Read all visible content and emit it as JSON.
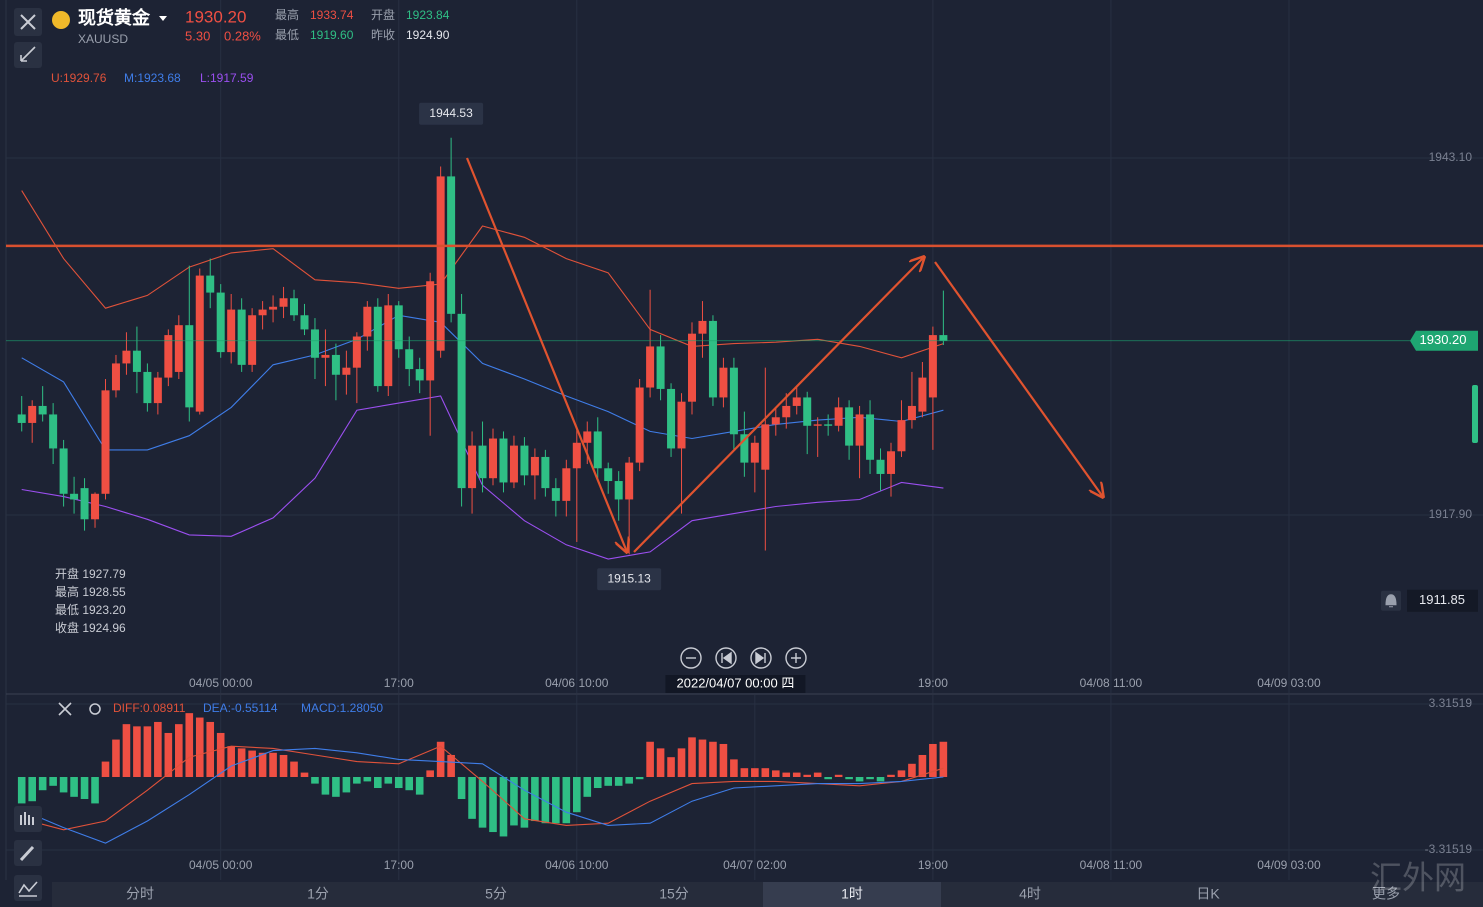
{
  "header": {
    "name": "现货黄金",
    "symbol": "XAUUSD",
    "price": "1930.20",
    "change": "5.30",
    "change_pct": "0.28%",
    "stats": [
      {
        "label": "最高",
        "value": "1933.74",
        "color": "#ef4f43"
      },
      {
        "label": "开盘",
        "value": "1923.84",
        "color": "#2fbf85"
      },
      {
        "label": "最低",
        "value": "1919.60",
        "color": "#2fbf85"
      },
      {
        "label": "昨收",
        "value": "1924.90",
        "color": "#e6e8ee"
      }
    ]
  },
  "ohlc_info": [
    "开盘 1927.79",
    "最高 1928.55",
    "最低 1923.20",
    "收盘 1924.96"
  ],
  "chart_data": [
    {
      "type": "candlestick",
      "colors": {
        "up": "#ef4f43",
        "down": "#2fbf85"
      },
      "open": [
        1925.0,
        1924.4,
        1925.6,
        1925.0,
        1922.6,
        1919.4,
        1919.8,
        1917.6,
        1919.4,
        1926.7,
        1928.6,
        1929.5,
        1928.0,
        1925.8,
        1927.6,
        1928.0,
        1931.3,
        1925.2,
        1934.8,
        1933.6,
        1929.4,
        1932.4,
        1928.5,
        1932.0,
        1932.4,
        1932.6,
        1933.2,
        1932.0,
        1931.0,
        1929.0,
        1929.2,
        1927.8,
        1928.3,
        1930.5,
        1932.6,
        1927.0,
        1932.7,
        1929.6,
        1928.2,
        1927.4,
        1929.5,
        1941.8,
        1932.1,
        1919.8,
        1922.8,
        1920.5,
        1923.3,
        1920.2,
        1922.8,
        1920.7,
        1922.0,
        1919.8,
        1918.9,
        1921.2,
        1923.0,
        1923.8,
        1921.2,
        1920.3,
        1919.0,
        1921.6,
        1926.9,
        1929.8,
        1926.8,
        1922.6,
        1925.9,
        1930.7,
        1931.6,
        1926.2,
        1928.3,
        1923.6,
        1921.6,
        1921.1,
        1924.3,
        1924.8,
        1925.6,
        1926.2,
        1924.2,
        1924.3,
        1924.2,
        1925.5,
        1922.8,
        1925.0,
        1921.8,
        1920.8,
        1922.4,
        1924.6,
        1925.2,
        1926.2,
        1930.6
      ],
      "high": [
        1926.3,
        1926.0,
        1927.0,
        1925.8,
        1923.2,
        1920.6,
        1920.5,
        1919.5,
        1927.5,
        1929.2,
        1930.8,
        1931.2,
        1928.6,
        1928.0,
        1931.0,
        1932.0,
        1935.5,
        1935.3,
        1936.0,
        1934.2,
        1933.5,
        1933.2,
        1932.5,
        1933.0,
        1933.4,
        1934.0,
        1933.8,
        1932.8,
        1931.8,
        1931.0,
        1930.0,
        1929.5,
        1930.8,
        1933.0,
        1933.2,
        1933.5,
        1933.0,
        1930.5,
        1929.0,
        1935.0,
        1942.5,
        1944.53,
        1933.5,
        1923.8,
        1924.5,
        1924.0,
        1923.8,
        1923.5,
        1923.4,
        1922.6,
        1922.5,
        1920.5,
        1921.8,
        1924.0,
        1924.5,
        1924.8,
        1921.6,
        1921.0,
        1922.0,
        1927.5,
        1933.8,
        1930.6,
        1927.2,
        1926.5,
        1931.5,
        1933.0,
        1932.0,
        1929.0,
        1929.0,
        1925.2,
        1923.5,
        1928.3,
        1925.5,
        1926.5,
        1927.0,
        1926.6,
        1924.8,
        1925.0,
        1926.2,
        1926.0,
        1925.6,
        1926.0,
        1922.6,
        1923.0,
        1926.0,
        1928.0,
        1928.7,
        1931.2,
        1933.74
      ],
      "low": [
        1923.8,
        1923.0,
        1924.5,
        1921.5,
        1918.5,
        1918.0,
        1916.8,
        1917.0,
        1919.0,
        1926.2,
        1927.8,
        1926.5,
        1925.2,
        1925.0,
        1927.0,
        1927.5,
        1924.5,
        1925.0,
        1932.5,
        1929.0,
        1928.6,
        1928.0,
        1928.0,
        1931.0,
        1931.5,
        1931.8,
        1931.6,
        1930.6,
        1927.5,
        1927.0,
        1926.0,
        1926.4,
        1925.8,
        1929.5,
        1926.6,
        1926.3,
        1929.0,
        1927.0,
        1926.5,
        1923.5,
        1929.0,
        1931.5,
        1918.5,
        1918.0,
        1919.5,
        1920.0,
        1919.5,
        1919.8,
        1920.0,
        1919.0,
        1919.2,
        1917.8,
        1917.8,
        1916.0,
        1921.5,
        1920.5,
        1919.4,
        1917.5,
        1915.13,
        1921.0,
        1926.2,
        1926.0,
        1922.0,
        1918.0,
        1925.0,
        1929.0,
        1925.6,
        1925.5,
        1922.5,
        1920.6,
        1919.5,
        1915.4,
        1923.5,
        1924.0,
        1925.0,
        1922.2,
        1922.0,
        1923.5,
        1923.8,
        1921.8,
        1920.5,
        1920.8,
        1919.6,
        1919.2,
        1922.0,
        1924.0,
        1924.8,
        1922.5,
        1929.9
      ],
      "close": [
        1924.4,
        1925.6,
        1925.0,
        1922.6,
        1919.4,
        1919.0,
        1917.6,
        1919.4,
        1926.7,
        1928.6,
        1929.5,
        1928.0,
        1925.8,
        1927.6,
        1930.6,
        1931.3,
        1925.5,
        1934.8,
        1933.6,
        1929.4,
        1932.4,
        1928.5,
        1932.0,
        1932.4,
        1932.6,
        1933.2,
        1932.0,
        1931.0,
        1929.0,
        1929.2,
        1927.8,
        1928.3,
        1930.5,
        1932.6,
        1927.0,
        1932.7,
        1929.6,
        1928.2,
        1927.4,
        1934.4,
        1941.8,
        1932.1,
        1919.8,
        1922.8,
        1920.5,
        1923.3,
        1920.2,
        1922.8,
        1920.7,
        1922.0,
        1919.8,
        1918.9,
        1921.2,
        1923.0,
        1923.8,
        1921.2,
        1920.3,
        1919.0,
        1921.6,
        1926.9,
        1929.8,
        1926.8,
        1922.6,
        1925.9,
        1930.7,
        1931.6,
        1926.2,
        1928.3,
        1923.6,
        1921.6,
        1923.0,
        1924.3,
        1924.8,
        1925.6,
        1926.2,
        1924.2,
        1924.3,
        1924.2,
        1925.5,
        1922.8,
        1925.0,
        1921.8,
        1920.8,
        1922.4,
        1924.6,
        1925.6,
        1927.6,
        1930.6,
        1930.2
      ],
      "series": [
        {
          "color": "#e0523a",
          "x": [
            0,
            4,
            8,
            12,
            16,
            20,
            24,
            28,
            32,
            36,
            40,
            44,
            48,
            52,
            56,
            60,
            64,
            68,
            72,
            76,
            80,
            84,
            88
          ],
          "values": [
            1940.8,
            1936.0,
            1932.5,
            1933.4,
            1935.4,
            1936.4,
            1936.7,
            1934.5,
            1934.3,
            1933.9,
            1934.2,
            1938.3,
            1937.5,
            1936.0,
            1935.0,
            1931.0,
            1929.8,
            1930.0,
            1930.1,
            1930.3,
            1929.8,
            1929.0,
            1930.0
          ]
        },
        {
          "color": "#3f7de8",
          "x": [
            0,
            4,
            8,
            12,
            16,
            20,
            24,
            28,
            32,
            36,
            40,
            44,
            48,
            52,
            56,
            60,
            64,
            68,
            72,
            76,
            80,
            84,
            88
          ],
          "values": [
            1929.0,
            1927.3,
            1922.5,
            1922.5,
            1923.5,
            1925.5,
            1928.5,
            1929.2,
            1930.3,
            1932.0,
            1931.5,
            1928.6,
            1927.5,
            1926.3,
            1925.2,
            1923.8,
            1923.3,
            1923.8,
            1924.3,
            1924.6,
            1924.8,
            1924.5,
            1925.3
          ]
        },
        {
          "color": "#9b4ff0",
          "x": [
            0,
            4,
            8,
            12,
            16,
            20,
            24,
            28,
            32,
            36,
            40,
            44,
            48,
            52,
            56,
            60,
            64,
            68,
            72,
            76,
            80,
            84,
            88
          ],
          "values": [
            1919.7,
            1919.2,
            1918.5,
            1917.6,
            1916.5,
            1916.4,
            1917.7,
            1920.5,
            1925.3,
            1925.8,
            1926.3,
            1920.0,
            1917.5,
            1915.8,
            1914.8,
            1915.3,
            1917.5,
            1918.0,
            1918.5,
            1918.8,
            1919.0,
            1920.2,
            1919.8
          ]
        }
      ],
      "legend": [
        {
          "text": "U:1929.76",
          "color": "#e0523a"
        },
        {
          "text": "M:1923.68",
          "color": "#3f7de8"
        },
        {
          "text": "L:1917.59",
          "color": "#9b4ff0"
        }
      ],
      "xlim": [
        -1.5,
        131.6
      ],
      "ylim": [
        1905.34,
        1954.25
      ],
      "xticks": [
        {
          "value": 19,
          "label": "04/05 00:00"
        },
        {
          "value": 36,
          "label": "17:00"
        },
        {
          "value": 53,
          "label": "04/06 10:00"
        },
        {
          "value": 87,
          "label": "19:00"
        },
        {
          "value": 104,
          "label": "04/08 11:00"
        },
        {
          "value": 121,
          "label": "04/09 03:00"
        }
      ],
      "yticks": [
        {
          "value": 1943.1,
          "label": "1943.10"
        },
        {
          "value": 1917.9,
          "label": "1917.90"
        }
      ],
      "crosshair": {
        "value": 67,
        "label": "2022/04/07 00:00 四"
      },
      "last_price": {
        "value": 1930.2,
        "label": "1930.20",
        "color": "#1ea672"
      },
      "alert": 1911.85,
      "resistance": 1936.9,
      "max_label": 1944.53,
      "min_label": 1915.13,
      "grid": true
    },
    {
      "type": "macd",
      "colors": {
        "up": "#ef4f43",
        "down": "#2fbf85"
      },
      "histogram": [
        -1.2,
        -1.1,
        -0.6,
        -0.4,
        -0.7,
        -0.9,
        -1.0,
        -1.2,
        0.7,
        1.7,
        2.4,
        2.3,
        2.3,
        2.5,
        2.0,
        2.4,
        2.9,
        2.7,
        2.5,
        2.0,
        1.4,
        1.3,
        1.2,
        1.1,
        1.1,
        1.0,
        0.7,
        0.2,
        -0.3,
        -0.8,
        -0.9,
        -0.7,
        -0.3,
        -0.2,
        -0.5,
        -0.3,
        -0.5,
        -0.6,
        -0.8,
        0.3,
        1.6,
        1.0,
        -1.0,
        -1.9,
        -2.3,
        -2.5,
        -2.7,
        -2.2,
        -2.3,
        -2.0,
        -2.1,
        -2.1,
        -2.1,
        -1.6,
        -0.9,
        -0.5,
        -0.4,
        -0.4,
        -0.3,
        -0.1,
        1.6,
        1.3,
        0.9,
        1.3,
        1.8,
        1.7,
        1.6,
        1.5,
        0.8,
        0.4,
        0.4,
        0.4,
        0.3,
        0.2,
        0.2,
        0.1,
        0.2,
        -0.1,
        0.1,
        -0.1,
        -0.2,
        -0.1,
        -0.2,
        0.1,
        0.3,
        0.6,
        1.0,
        1.5,
        1.6
      ],
      "series": [
        {
          "color": "#e0523a",
          "x": [
            0,
            4,
            8,
            12,
            16,
            20,
            24,
            28,
            32,
            36,
            40,
            44,
            48,
            52,
            56,
            60,
            64,
            68,
            72,
            76,
            80,
            84,
            88
          ],
          "values": [
            -1.9,
            -2.4,
            -2.0,
            -0.6,
            0.9,
            1.4,
            1.3,
            1.0,
            0.7,
            0.6,
            1.4,
            -0.2,
            -1.9,
            -2.2,
            -2.1,
            -1.1,
            -0.3,
            -0.2,
            -0.2,
            -0.3,
            -0.4,
            -0.2,
            0.4
          ]
        },
        {
          "color": "#3f7de8",
          "x": [
            0,
            4,
            8,
            12,
            16,
            20,
            24,
            28,
            32,
            36,
            40,
            44,
            48,
            52,
            56,
            60,
            64,
            68,
            72,
            76,
            80,
            84,
            88
          ],
          "values": [
            -1.5,
            -2.3,
            -3.0,
            -2.0,
            -0.8,
            0.5,
            1.2,
            1.3,
            1.1,
            0.8,
            0.7,
            0.6,
            -0.6,
            -1.6,
            -2.2,
            -2.1,
            -1.1,
            -0.5,
            -0.4,
            -0.3,
            -0.3,
            -0.2,
            0.0
          ]
        }
      ],
      "legend": [
        {
          "text": "DIFF:0.08911",
          "color": "#e0523a"
        },
        {
          "text": "DEA:-0.55114",
          "color": "#3f7de8"
        },
        {
          "text": "MACD:1.28050",
          "color": "#3f7de8"
        }
      ],
      "xlim": [
        -1.5,
        131.6
      ],
      "ylim": [
        -3.31519,
        3.31519
      ],
      "xticks": [
        {
          "value": 19,
          "label": "04/05 00:00"
        },
        {
          "value": 36,
          "label": "17:00"
        },
        {
          "value": 53,
          "label": "04/06 10:00"
        },
        {
          "value": 70,
          "label": "04/07 02:00"
        },
        {
          "value": 87,
          "label": "19:00"
        },
        {
          "value": 104,
          "label": "04/08 11:00"
        },
        {
          "value": 121,
          "label": "04/09 03:00"
        }
      ],
      "yticks": [
        {
          "value": 3.31519,
          "label": "3.31519"
        },
        {
          "value": -3.31519,
          "label": "-3.31519"
        }
      ],
      "grid": true
    }
  ],
  "toolbar": {
    "tabs": [
      "分时",
      "1分",
      "5分",
      "15分",
      "1时",
      "4时",
      "日K",
      "更多"
    ],
    "active": 4
  },
  "watermark": "汇外网"
}
